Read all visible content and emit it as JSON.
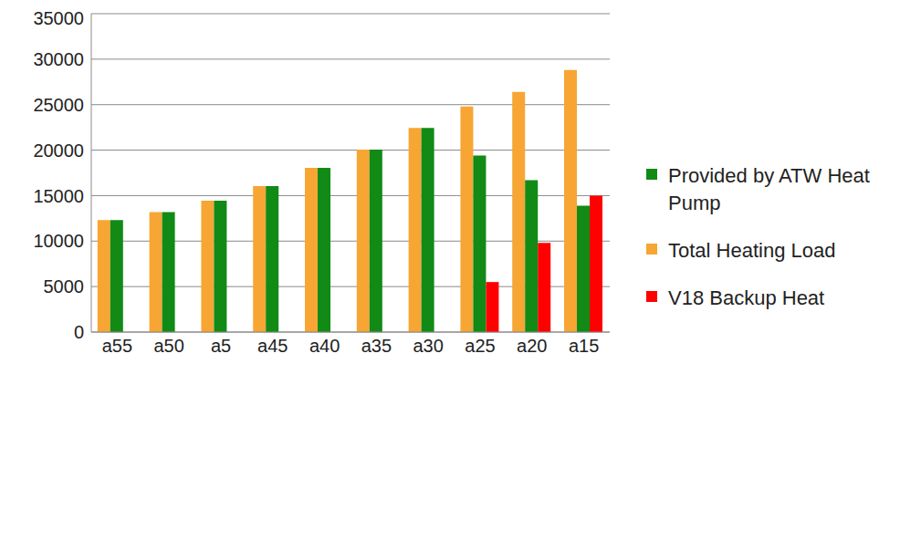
{
  "chart_data": {
    "type": "bar",
    "categories": [
      "a55",
      "a50",
      "a5",
      "a45",
      "a40",
      "a35",
      "a30",
      "a25",
      "a20",
      "a15"
    ],
    "series": [
      {
        "name": "Total Heating Load",
        "color": "#f7a533",
        "values": [
          12300,
          13200,
          14450,
          16050,
          18050,
          20050,
          22450,
          24800,
          26400,
          28800
        ]
      },
      {
        "name": "Provided by ATW Heat Pump",
        "color": "#118a16",
        "values": [
          12300,
          13200,
          14450,
          16050,
          18050,
          20050,
          22450,
          19400,
          16700,
          13900
        ]
      },
      {
        "name": "V18 Backup Heat",
        "color": "#ff0000",
        "values": [
          0,
          0,
          0,
          0,
          0,
          0,
          0,
          5500,
          9800,
          15000
        ]
      }
    ],
    "ylim": [
      0,
      35000
    ],
    "yticks": [
      0,
      5000,
      10000,
      15000,
      20000,
      25000,
      30000,
      35000
    ],
    "grid": true,
    "legend": "right"
  }
}
